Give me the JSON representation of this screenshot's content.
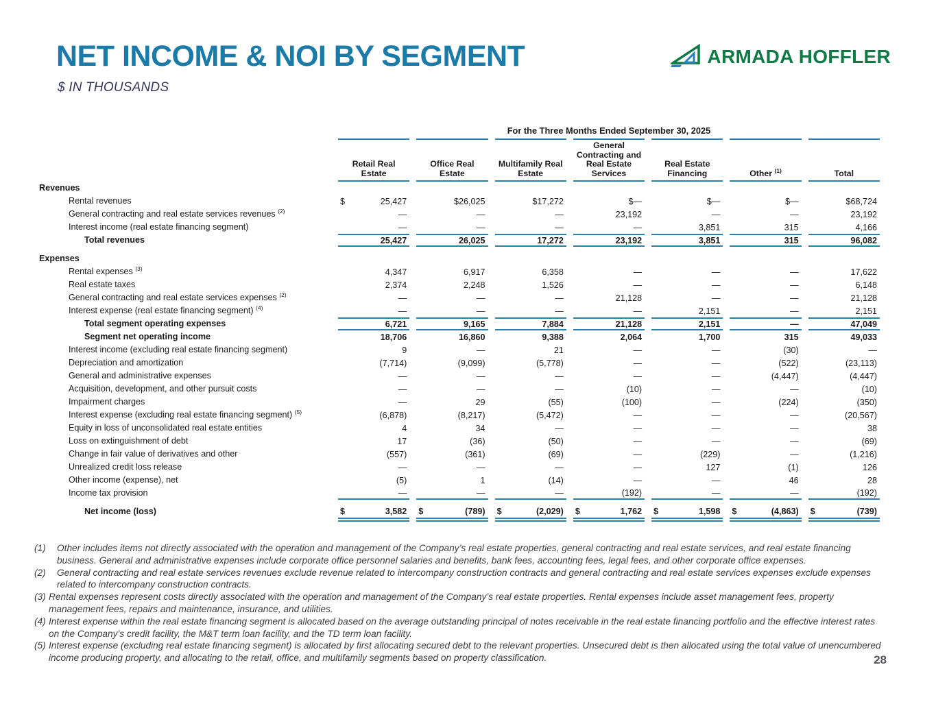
{
  "header": {
    "title": "NET INCOME & NOI BY SEGMENT",
    "subtitle": "$ IN THOUSANDS",
    "logo_text": "ARMADA HOFFLER"
  },
  "colors": {
    "title_blue": "#1a7aa8",
    "rule_blue": "#2a80a9",
    "logo_green": "#0e7a45",
    "logo_blue": "#2f7fc0",
    "footnote_gray": "#3c3c3c",
    "page_gray": "#55565a"
  },
  "table": {
    "period_header": "For the Three Months Ended September 30, 2025",
    "columns": [
      {
        "label": "Retail Real Estate"
      },
      {
        "label": "Office Real Estate"
      },
      {
        "label": "Multifamily Real Estate"
      },
      {
        "label": "General Contracting and Real Estate Services"
      },
      {
        "label": "Real Estate Financing"
      },
      {
        "label": "Other",
        "sup": "(1)"
      },
      {
        "label": "Total"
      }
    ],
    "rows": [
      {
        "type": "section",
        "label": "Revenues"
      },
      {
        "type": "data",
        "label": "Rental revenues",
        "lead": [
          "$",
          "",
          "",
          "",
          "",
          "",
          ""
        ],
        "values": [
          "25,427",
          "$26,025",
          "$17,272",
          "$—",
          "$—",
          "$—",
          "$68,724"
        ]
      },
      {
        "type": "data",
        "label": "General contracting and real estate services revenues",
        "sup": "(2)",
        "values": [
          "—",
          "—",
          "—",
          "23,192",
          "—",
          "—",
          "23,192"
        ]
      },
      {
        "type": "data",
        "label": "Interest income (real estate financing segment)",
        "values": [
          "—",
          "—",
          "—",
          "—",
          "3,851",
          "315",
          "4,166"
        ]
      },
      {
        "type": "data",
        "label": "Total revenues",
        "bold": true,
        "indent": 2,
        "rule_above": true,
        "rule_below": true,
        "values": [
          "25,427",
          "26,025",
          "17,272",
          "23,192",
          "3,851",
          "315",
          "96,082"
        ]
      },
      {
        "type": "gap"
      },
      {
        "type": "section",
        "label": "Expenses"
      },
      {
        "type": "data",
        "label": "Rental expenses",
        "sup": "(3)",
        "values": [
          "4,347",
          "6,917",
          "6,358",
          "—",
          "—",
          "—",
          "17,622"
        ]
      },
      {
        "type": "data",
        "label": "Real estate taxes",
        "values": [
          "2,374",
          "2,248",
          "1,526",
          "—",
          "—",
          "—",
          "6,148"
        ]
      },
      {
        "type": "data",
        "label": "General contracting and real estate services expenses",
        "sup": "(2)",
        "values": [
          "—",
          "—",
          "—",
          "21,128",
          "—",
          "—",
          "21,128"
        ]
      },
      {
        "type": "data",
        "label": "Interest expense (real estate financing segment)",
        "sup": "(4)",
        "values": [
          "—",
          "—",
          "—",
          "—",
          "2,151",
          "—",
          "2,151"
        ]
      },
      {
        "type": "data",
        "label": "Total segment operating expenses",
        "bold": true,
        "indent": 2,
        "rule_above": true,
        "rule_below": true,
        "values": [
          "6,721",
          "9,165",
          "7,884",
          "21,128",
          "2,151",
          "—",
          "47,049"
        ]
      },
      {
        "type": "data",
        "label": "Segment net operating income",
        "bold": true,
        "indent": 2,
        "values": [
          "18,706",
          "16,860",
          "9,388",
          "2,064",
          "1,700",
          "315",
          "49,033"
        ]
      },
      {
        "type": "data",
        "label": "Interest income (excluding real estate financing segment)",
        "values": [
          "9",
          "—",
          "21",
          "—",
          "—",
          "(30)",
          "—"
        ]
      },
      {
        "type": "data",
        "label": "Depreciation and amortization",
        "values": [
          "(7,714)",
          "(9,099)",
          "(5,778)",
          "—",
          "—",
          "(522)",
          "(23,113)"
        ]
      },
      {
        "type": "data",
        "label": "General and administrative expenses",
        "values": [
          "—",
          "—",
          "—",
          "—",
          "—",
          "(4,447)",
          "(4,447)"
        ]
      },
      {
        "type": "data",
        "label": "Acquisition, development, and other pursuit costs",
        "values": [
          "—",
          "—",
          "—",
          "(10)",
          "—",
          "—",
          "(10)"
        ]
      },
      {
        "type": "data",
        "label": "Impairment charges",
        "values": [
          "—",
          "29",
          "(55)",
          "(100)",
          "—",
          "(224)",
          "(350)"
        ]
      },
      {
        "type": "data",
        "label": "Interest expense (excluding real estate financing segment)",
        "sup": "(5)",
        "values": [
          "(6,878)",
          "(8,217)",
          "(5,472)",
          "—",
          "—",
          "—",
          "(20,567)"
        ]
      },
      {
        "type": "data",
        "label": "Equity in loss of unconsolidated real estate entities",
        "values": [
          "4",
          "34",
          "—",
          "—",
          "—",
          "—",
          "38"
        ]
      },
      {
        "type": "data",
        "label": "Loss on extinguishment of debt",
        "values": [
          "17",
          "(36)",
          "(50)",
          "—",
          "—",
          "—",
          "(69)"
        ]
      },
      {
        "type": "data",
        "label": "Change in fair value of derivatives and other",
        "values": [
          "(557)",
          "(361)",
          "(69)",
          "—",
          "(229)",
          "—",
          "(1,216)"
        ]
      },
      {
        "type": "data",
        "label": "Unrealized credit loss release",
        "values": [
          "—",
          "—",
          "—",
          "—",
          "127",
          "(1)",
          "126"
        ]
      },
      {
        "type": "data",
        "label": "Other income (expense), net",
        "values": [
          "(5)",
          "1",
          "(14)",
          "—",
          "—",
          "46",
          "28"
        ]
      },
      {
        "type": "data",
        "label": "Income tax provision",
        "rule_below": true,
        "values": [
          "—",
          "—",
          "—",
          "(192)",
          "—",
          "—",
          "(192)"
        ]
      },
      {
        "type": "gap"
      },
      {
        "type": "data",
        "label": "Net income (loss)",
        "bold": true,
        "indent": 2,
        "double_below": true,
        "lead": [
          "$",
          "$",
          "$",
          "$",
          "$",
          "$",
          "$"
        ],
        "values": [
          "3,582",
          "(789)",
          "(2,029)",
          "1,762",
          "1,598",
          "(4,863)",
          "(739)"
        ]
      }
    ]
  },
  "footnotes": [
    {
      "marker": "(1)",
      "gap": "wide",
      "text": "Other includes items not directly associated with the operation and management of the Company’s real estate properties, general contracting and real estate services, and real estate financing business. General and administrative expenses include corporate office personnel salaries and benefits, bank fees, accounting fees, legal fees, and other corporate office expenses."
    },
    {
      "marker": "(2)",
      "gap": "wide",
      "text": "General contracting and real estate services revenues exclude revenue related to intercompany construction contracts and general contracting and real estate services expenses exclude expenses related to intercompany construction contracts."
    },
    {
      "marker": "(3)",
      "gap": "narrow",
      "text": "Rental expenses represent costs directly associated with the operation and management of the Company’s real estate properties. Rental expenses include asset management fees, property management fees, repairs and maintenance, insurance, and utilities."
    },
    {
      "marker": "(4)",
      "gap": "narrow",
      "text": "Interest expense within the real estate financing segment is allocated based on the average outstanding principal of notes receivable in the real estate financing portfolio and the effective interest rates on the Company’s credit facility, the M&T term loan facility, and the TD term loan facility."
    },
    {
      "marker": "(5)",
      "gap": "narrow",
      "text": "Interest expense (excluding real estate financing segment) is allocated by first allocating secured debt to the relevant properties. Unsecured debt is then allocated using the total value of unencumbered income producing property, and allocating to the retail, office, and multifamily segments based on property classification."
    }
  ],
  "page_number": "28"
}
